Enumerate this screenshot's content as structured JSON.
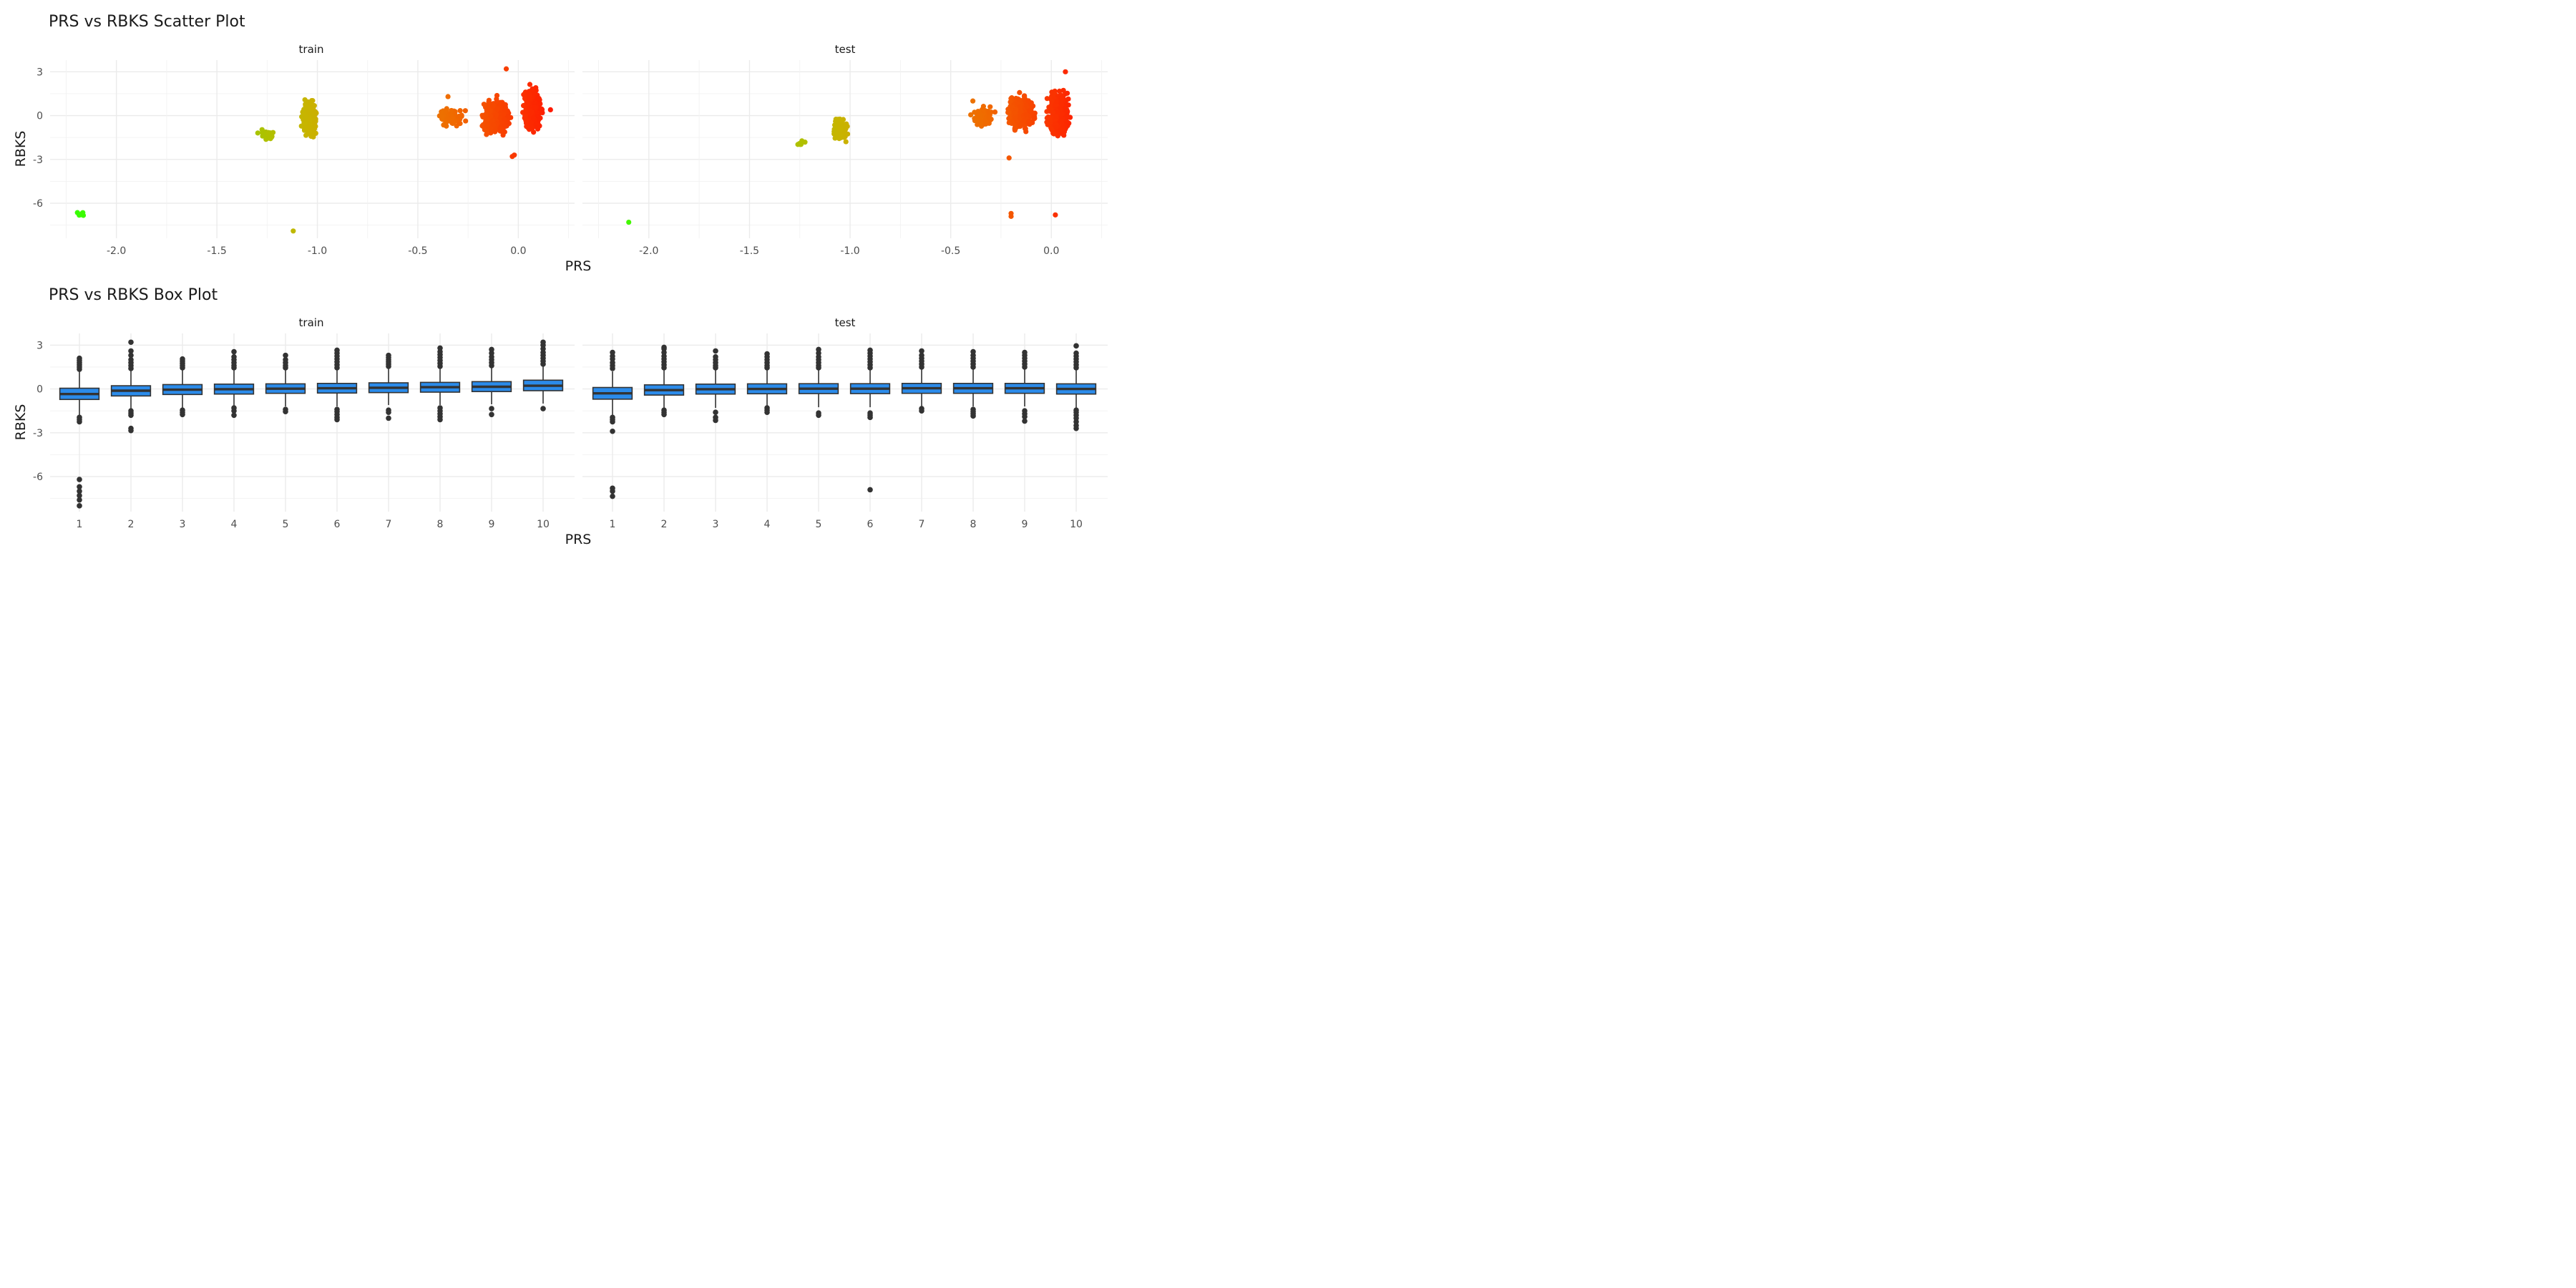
{
  "colors": {
    "box_fill": "#2b8bea",
    "box_line": "#333333",
    "gradient_low": "#33ff00",
    "gradient_mid": "#c8b400",
    "gradient_high": "#ff1a00",
    "grid": "#ebebeb"
  },
  "chart_data": [
    {
      "type": "scatter",
      "title": "PRS vs RBKS Scatter Plot",
      "xlabel": "PRS",
      "ylabel": "RBKS",
      "grid": true,
      "xlim": [
        -2.33,
        0.28
      ],
      "ylim": [
        -8.4,
        3.8
      ],
      "xticks": [
        -2.0,
        -1.5,
        -1.0,
        -0.5,
        0.0
      ],
      "xtick_labels": [
        "-2.0",
        "-1.5",
        "-1.0",
        "-0.5",
        "0.0"
      ],
      "yticks": [
        -6,
        -3,
        0,
        3
      ],
      "ytick_labels": [
        "-6",
        "-3",
        "0",
        "3"
      ],
      "color_scale": "color mapped to PRS: green (low) to yellow (around -1) to red (high)",
      "facets": [
        {
          "label": "train",
          "clusters": [
            {
              "x_range": [
                -2.23,
                -2.13
              ],
              "y_range": [
                -7.4,
                -6.1
              ],
              "n": 7
            },
            {
              "x_range": [
                -1.32,
                -1.18
              ],
              "y_range": [
                -2.1,
                -0.6
              ],
              "n": 30
            },
            {
              "x_range": [
                -1.1,
                -0.98
              ],
              "y_range": [
                -2.4,
                2.0
              ],
              "n": 260
            },
            {
              "x_range": [
                -0.45,
                -0.22
              ],
              "y_range": [
                -1.7,
                1.3
              ],
              "n": 70
            },
            {
              "x_range": [
                -0.22,
                0.0
              ],
              "y_range": [
                -2.2,
                2.1
              ],
              "n": 500
            },
            {
              "x_range": [
                0.0,
                0.14
              ],
              "y_range": [
                -2.3,
                3.1
              ],
              "n": 650
            }
          ],
          "points": [
            {
              "x": -1.12,
              "y": -7.9
            },
            {
              "x": -0.06,
              "y": 3.2
            },
            {
              "x": 0.16,
              "y": 0.4
            },
            {
              "x": -0.02,
              "y": -2.7
            },
            {
              "x": -0.03,
              "y": -2.8
            },
            {
              "x": -0.35,
              "y": 1.3
            }
          ]
        },
        {
          "label": "test",
          "clusters": [
            {
              "x_range": [
                -1.28,
                -1.2
              ],
              "y_range": [
                -2.2,
                -1.6
              ],
              "n": 8
            },
            {
              "x_range": [
                -1.1,
                -1.0
              ],
              "y_range": [
                -2.2,
                0.4
              ],
              "n": 200
            },
            {
              "x_range": [
                -0.43,
                -0.25
              ],
              "y_range": [
                -1.3,
                1.1
              ],
              "n": 80
            },
            {
              "x_range": [
                -0.26,
                -0.04
              ],
              "y_range": [
                -1.9,
                2.4
              ],
              "n": 450
            },
            {
              "x_range": [
                -0.05,
                0.12
              ],
              "y_range": [
                -2.6,
                2.9
              ],
              "n": 550
            }
          ],
          "points": [
            {
              "x": -2.1,
              "y": -7.3
            },
            {
              "x": -0.2,
              "y": -6.7
            },
            {
              "x": -0.2,
              "y": -6.9
            },
            {
              "x": 0.02,
              "y": -6.8
            },
            {
              "x": -0.21,
              "y": -2.9
            },
            {
              "x": 0.07,
              "y": 3.0
            },
            {
              "x": -0.39,
              "y": 1.0
            }
          ]
        }
      ]
    },
    {
      "type": "box",
      "title": "PRS vs RBKS Box Plot",
      "xlabel": "PRS",
      "ylabel": "RBKS",
      "grid": true,
      "ylim": [
        -8.4,
        3.8
      ],
      "categories": [
        "1",
        "2",
        "3",
        "4",
        "5",
        "6",
        "7",
        "8",
        "9",
        "10"
      ],
      "yticks": [
        -6,
        -3,
        0,
        3
      ],
      "ytick_labels": [
        "-6",
        "-3",
        "0",
        "3"
      ],
      "facets": [
        {
          "label": "train",
          "boxes": [
            {
              "q1": -0.72,
              "median": -0.35,
              "q3": 0.05,
              "lower": -1.8,
              "upper": 1.2,
              "outliers": [
                1.35,
                1.5,
                1.65,
                1.8,
                1.95,
                2.1,
                -1.95,
                -2.1,
                -2.25,
                -6.2,
                -6.7,
                -7.0,
                -7.3,
                -7.6,
                -8.0
              ]
            },
            {
              "q1": -0.48,
              "median": -0.12,
              "q3": 0.22,
              "lower": -1.4,
              "upper": 1.25,
              "outliers": [
                1.4,
                1.6,
                1.8,
                2.0,
                2.3,
                2.6,
                3.2,
                -1.5,
                -1.65,
                -1.8,
                -2.7,
                -2.85
              ]
            },
            {
              "q1": -0.38,
              "median": -0.05,
              "q3": 0.3,
              "lower": -1.3,
              "upper": 1.3,
              "outliers": [
                1.45,
                1.6,
                1.75,
                1.9,
                2.05,
                -1.45,
                -1.6,
                -1.75
              ]
            },
            {
              "q1": -0.35,
              "median": -0.02,
              "q3": 0.33,
              "lower": -1.2,
              "upper": 1.3,
              "outliers": [
                1.45,
                1.6,
                1.8,
                2.0,
                2.2,
                2.55,
                -1.3,
                -1.5,
                -1.8
              ]
            },
            {
              "q1": -0.3,
              "median": 0.02,
              "q3": 0.35,
              "lower": -1.2,
              "upper": 1.3,
              "outliers": [
                1.45,
                1.6,
                1.8,
                2.0,
                2.3,
                -1.4,
                -1.55
              ]
            },
            {
              "q1": -0.28,
              "median": 0.05,
              "q3": 0.38,
              "lower": -1.2,
              "upper": 1.3,
              "outliers": [
                1.45,
                1.65,
                1.85,
                2.05,
                2.25,
                2.45,
                2.65,
                -1.4,
                -1.55,
                -1.75,
                -1.95,
                -2.1
              ]
            },
            {
              "q1": -0.25,
              "median": 0.08,
              "q3": 0.42,
              "lower": -1.1,
              "upper": 1.4,
              "outliers": [
                1.55,
                1.7,
                1.85,
                2.0,
                2.15,
                2.3,
                -1.45,
                -1.6,
                -2.0
              ]
            },
            {
              "q1": -0.22,
              "median": 0.12,
              "q3": 0.45,
              "lower": -1.1,
              "upper": 1.4,
              "outliers": [
                1.55,
                1.75,
                1.95,
                2.15,
                2.35,
                2.55,
                2.8,
                -1.3,
                -1.5,
                -1.7,
                -1.9,
                -2.1
              ]
            },
            {
              "q1": -0.18,
              "median": 0.15,
              "q3": 0.5,
              "lower": -1.05,
              "upper": 1.45,
              "outliers": [
                1.6,
                1.8,
                2.0,
                2.2,
                2.45,
                2.7,
                -1.35,
                -1.75
              ]
            },
            {
              "q1": -0.12,
              "median": 0.22,
              "q3": 0.6,
              "lower": -1.0,
              "upper": 1.55,
              "outliers": [
                1.7,
                1.9,
                2.1,
                2.3,
                2.5,
                2.75,
                3.0,
                3.2,
                -1.35
              ]
            }
          ]
        },
        {
          "label": "test",
          "boxes": [
            {
              "q1": -0.7,
              "median": -0.3,
              "q3": 0.1,
              "lower": -1.8,
              "upper": 1.2,
              "outliers": [
                1.4,
                1.6,
                1.8,
                2.05,
                2.25,
                2.5,
                -1.95,
                -2.1,
                -2.25,
                -2.9,
                -6.8,
                -7.0,
                -7.35
              ]
            },
            {
              "q1": -0.42,
              "median": -0.08,
              "q3": 0.28,
              "lower": -1.3,
              "upper": 1.3,
              "outliers": [
                1.45,
                1.65,
                1.85,
                2.05,
                2.25,
                2.5,
                2.75,
                2.85,
                -1.45,
                -1.6,
                -1.75
              ]
            },
            {
              "q1": -0.35,
              "median": -0.02,
              "q3": 0.33,
              "lower": -1.3,
              "upper": 1.3,
              "outliers": [
                1.45,
                1.6,
                1.8,
                2.0,
                2.2,
                2.6,
                -1.6,
                -1.95,
                -2.15
              ]
            },
            {
              "q1": -0.33,
              "median": 0.0,
              "q3": 0.35,
              "lower": -1.2,
              "upper": 1.3,
              "outliers": [
                1.45,
                1.6,
                1.8,
                2.0,
                2.2,
                2.4,
                -1.3,
                -1.45,
                -1.6
              ]
            },
            {
              "q1": -0.32,
              "median": 0.02,
              "q3": 0.36,
              "lower": -1.25,
              "upper": 1.3,
              "outliers": [
                1.45,
                1.6,
                1.8,
                2.0,
                2.2,
                2.45,
                2.7,
                -1.65,
                -1.8
              ]
            },
            {
              "q1": -0.32,
              "median": 0.02,
              "q3": 0.36,
              "lower": -1.25,
              "upper": 1.3,
              "outliers": [
                1.45,
                1.65,
                1.85,
                2.05,
                2.25,
                2.45,
                2.65,
                -1.65,
                -1.8,
                -1.95,
                -6.9
              ]
            },
            {
              "q1": -0.3,
              "median": 0.05,
              "q3": 0.38,
              "lower": -1.2,
              "upper": 1.35,
              "outliers": [
                1.5,
                1.7,
                1.9,
                2.1,
                2.3,
                2.6,
                -1.35,
                -1.5
              ]
            },
            {
              "q1": -0.3,
              "median": 0.05,
              "q3": 0.38,
              "lower": -1.2,
              "upper": 1.35,
              "outliers": [
                1.5,
                1.7,
                1.9,
                2.1,
                2.3,
                2.55,
                -1.4,
                -1.55,
                -1.7,
                -1.85
              ]
            },
            {
              "q1": -0.3,
              "median": 0.05,
              "q3": 0.38,
              "lower": -1.2,
              "upper": 1.35,
              "outliers": [
                1.5,
                1.7,
                1.9,
                2.1,
                2.3,
                2.5,
                -1.5,
                -1.7,
                -1.9,
                -2.2
              ]
            },
            {
              "q1": -0.35,
              "median": 0.0,
              "q3": 0.35,
              "lower": -1.3,
              "upper": 1.3,
              "outliers": [
                1.45,
                1.65,
                1.85,
                2.05,
                2.25,
                2.45,
                2.95,
                -1.45,
                -1.6,
                -1.8,
                -2.0,
                -2.25,
                -2.5,
                -2.7
              ]
            }
          ]
        }
      ]
    }
  ]
}
